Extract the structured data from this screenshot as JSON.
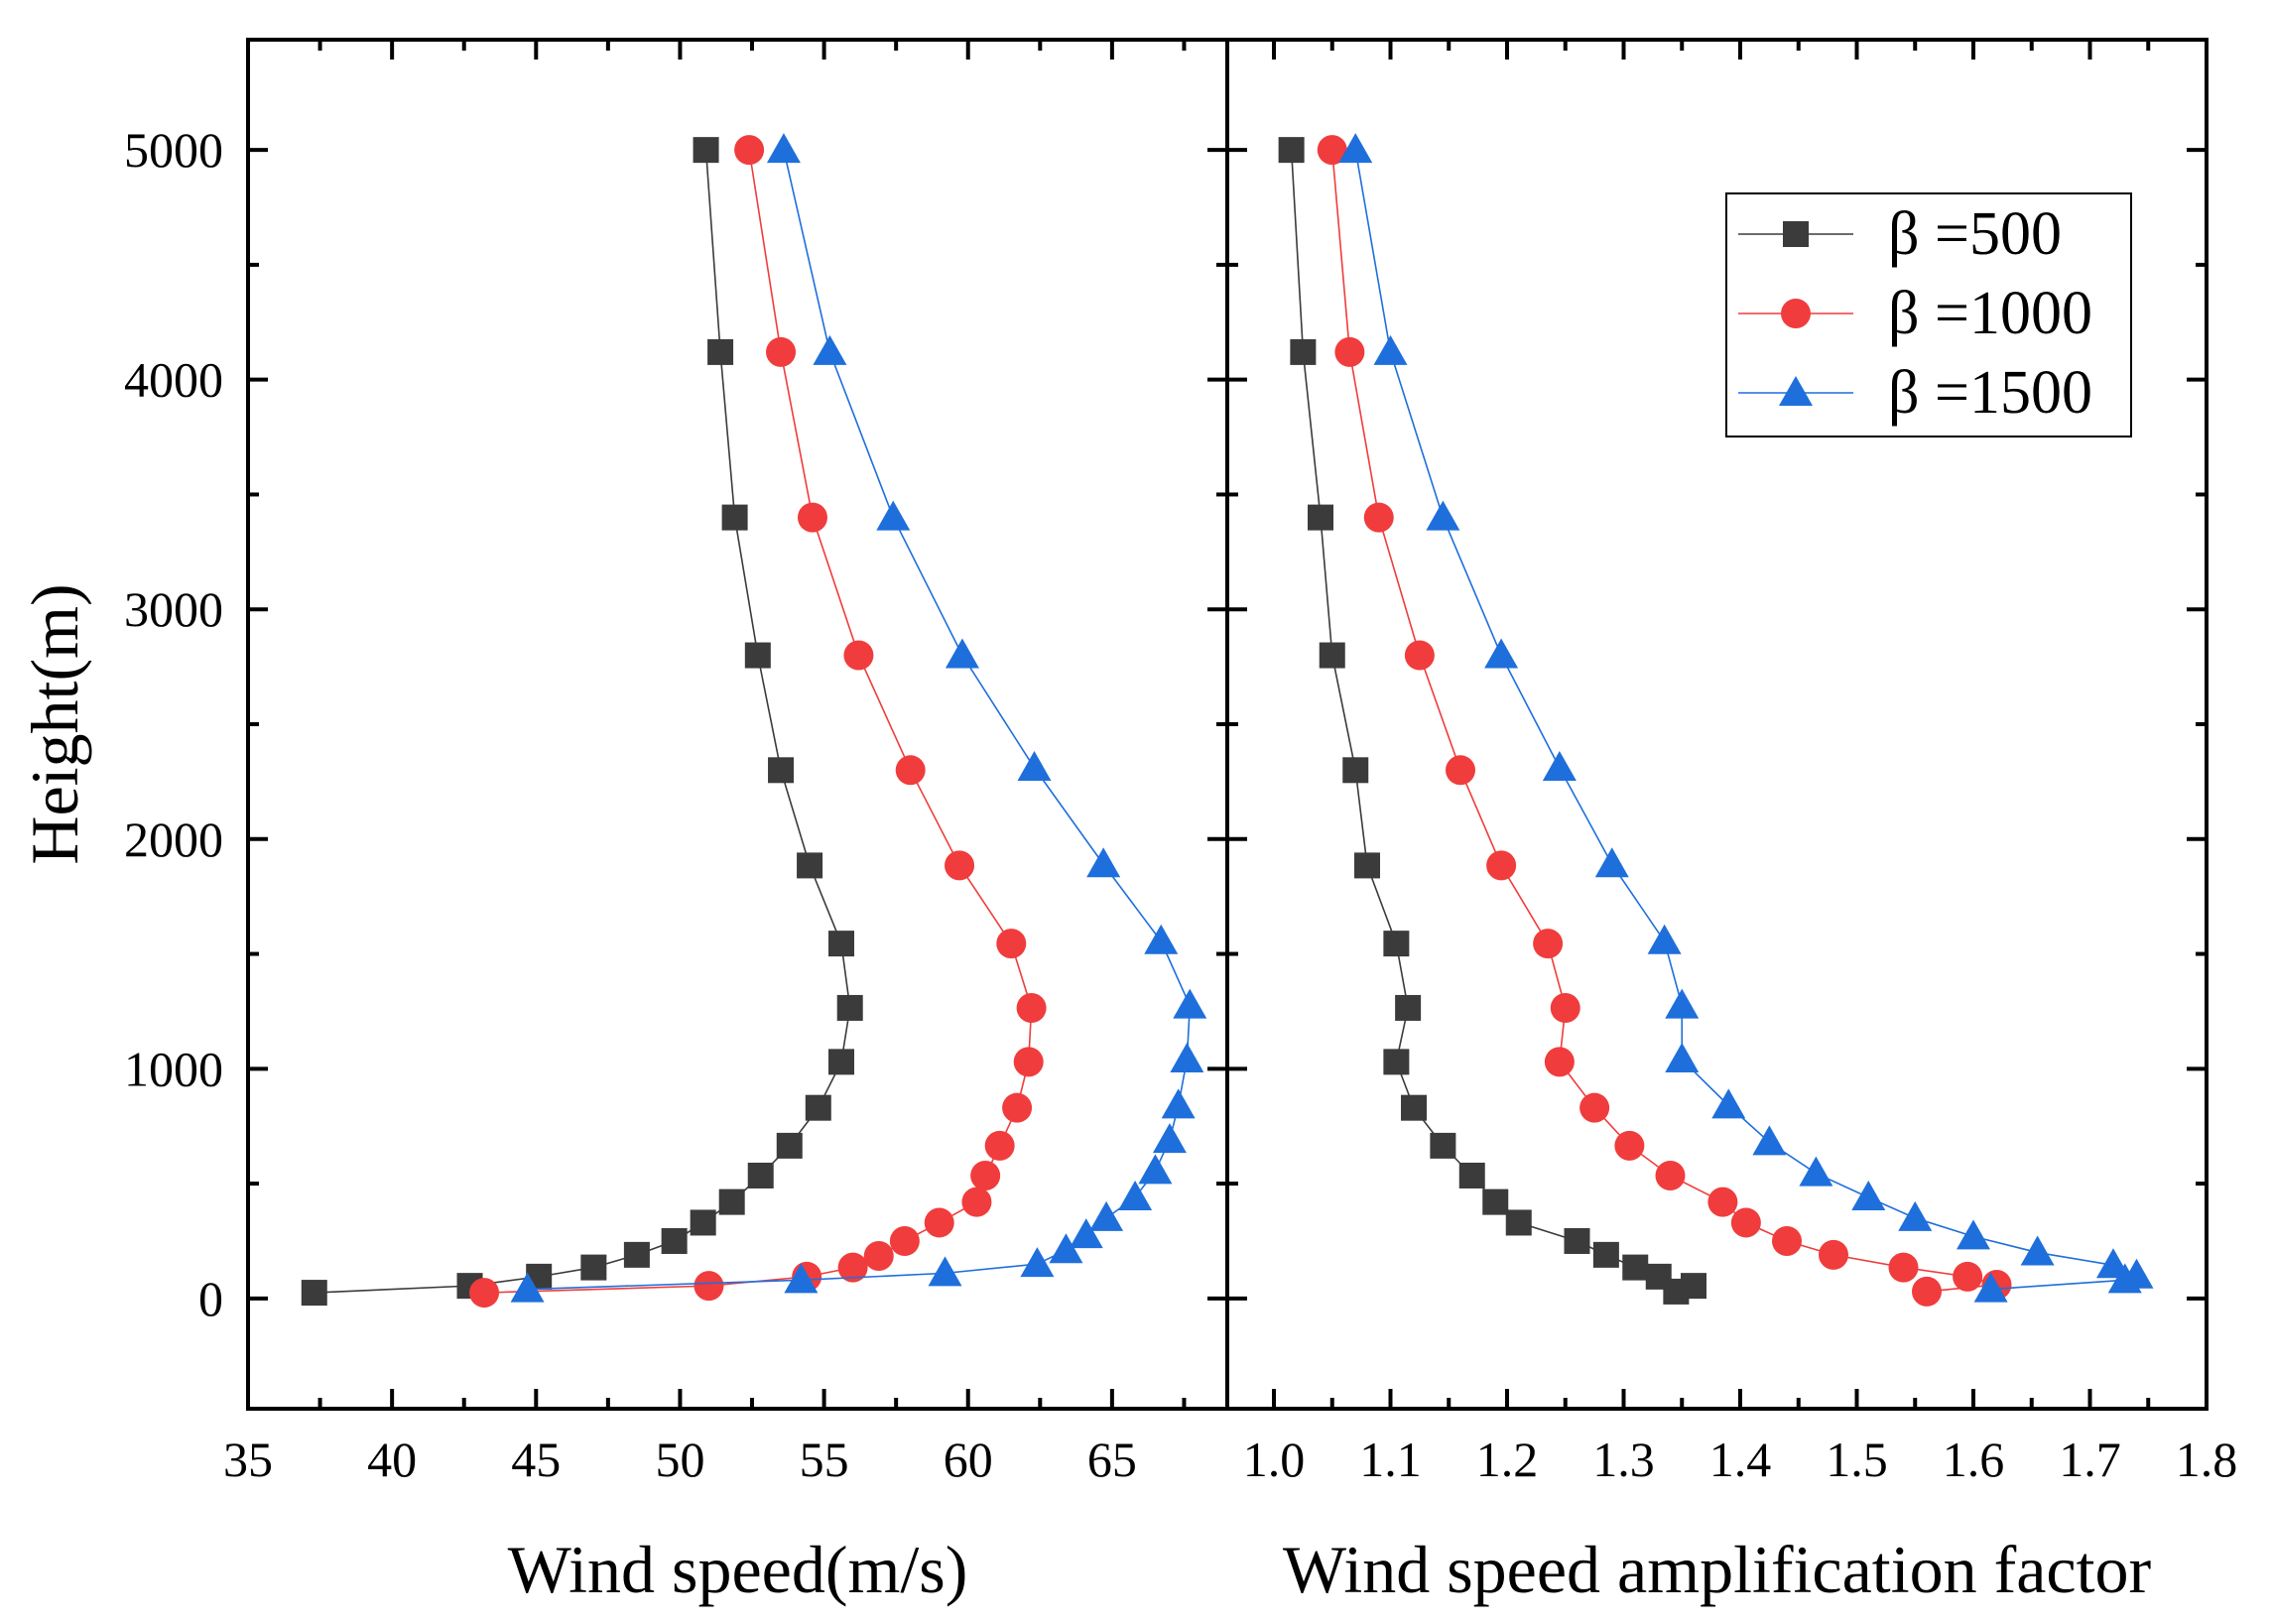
{
  "chart_data": [
    {
      "type": "scatter",
      "xlabel": "Wind speed(m/s)",
      "ylabel": "Height(m)",
      "xlim": [
        35,
        69
      ],
      "ylim": [
        -480,
        5480
      ],
      "xticks": [
        35,
        40,
        45,
        50,
        55,
        60,
        65
      ],
      "xtick_labels": [
        "35",
        "40",
        "45",
        "50",
        "55",
        "60",
        "65"
      ],
      "yticks": [
        0,
        1000,
        2000,
        3000,
        4000,
        5000
      ],
      "ytick_labels": [
        "0",
        "1000",
        "2000",
        "3000",
        "4000",
        "5000"
      ],
      "series": [
        {
          "name": "β =500",
          "marker": "square",
          "color": "#3b3b3b",
          "points": [
            [
              37.3,
              25
            ],
            [
              42.7,
              55
            ],
            [
              45.1,
              95
            ],
            [
              47.0,
              135
            ],
            [
              48.5,
              190
            ],
            [
              49.8,
              250
            ],
            [
              50.8,
              330
            ],
            [
              51.8,
              420
            ],
            [
              52.8,
              535
            ],
            [
              53.8,
              665
            ],
            [
              54.8,
              830
            ],
            [
              55.6,
              1030
            ],
            [
              55.9,
              1265
            ],
            [
              55.6,
              1545
            ],
            [
              54.5,
              1885
            ],
            [
              53.5,
              2300
            ],
            [
              52.7,
              2800
            ],
            [
              51.9,
              3400
            ],
            [
              51.4,
              4120
            ],
            [
              50.9,
              5000
            ]
          ]
        },
        {
          "name": "β =1000",
          "marker": "circle",
          "color": "#f03c3c",
          "points": [
            [
              43.2,
              25
            ],
            [
              51.0,
              55
            ],
            [
              54.4,
              95
            ],
            [
              56.0,
              135
            ],
            [
              56.9,
              185
            ],
            [
              57.8,
              250
            ],
            [
              59.0,
              330
            ],
            [
              60.3,
              420
            ],
            [
              60.6,
              535
            ],
            [
              61.1,
              665
            ],
            [
              61.7,
              830
            ],
            [
              62.1,
              1030
            ],
            [
              62.2,
              1265
            ],
            [
              61.5,
              1545
            ],
            [
              59.7,
              1885
            ],
            [
              58.0,
              2300
            ],
            [
              56.2,
              2800
            ],
            [
              54.6,
              3400
            ],
            [
              53.5,
              4120
            ],
            [
              52.4,
              5000
            ]
          ]
        },
        {
          "name": "β =1500",
          "marker": "triangle",
          "color": "#1e6fdc",
          "points": [
            [
              44.7,
              40
            ],
            [
              54.2,
              80
            ],
            [
              59.2,
              110
            ],
            [
              62.4,
              150
            ],
            [
              63.4,
              210
            ],
            [
              64.1,
              275
            ],
            [
              64.8,
              350
            ],
            [
              65.8,
              440
            ],
            [
              66.5,
              555
            ],
            [
              67.0,
              690
            ],
            [
              67.3,
              840
            ],
            [
              67.6,
              1040
            ],
            [
              67.7,
              1275
            ],
            [
              66.7,
              1555
            ],
            [
              64.7,
              1890
            ],
            [
              62.3,
              2310
            ],
            [
              59.8,
              2800
            ],
            [
              57.4,
              3400
            ],
            [
              55.2,
              4120
            ],
            [
              53.6,
              5000
            ]
          ]
        }
      ]
    },
    {
      "type": "scatter",
      "xlabel": "Wind speed amplification factor",
      "ylabel": "",
      "xlim": [
        0.96,
        1.8
      ],
      "ylim": [
        -480,
        5480
      ],
      "xticks": [
        1.0,
        1.1,
        1.2,
        1.3,
        1.4,
        1.5,
        1.6,
        1.7,
        1.8
      ],
      "xtick_labels": [
        "1.0",
        "1.1",
        "1.2",
        "1.3",
        "1.4",
        "1.5",
        "1.6",
        "1.7",
        "1.8"
      ],
      "yticks": [
        0,
        1000,
        2000,
        3000,
        4000,
        5000
      ],
      "legend_position": "top-right",
      "series": [
        {
          "name": "β =500",
          "marker": "square",
          "color": "#3b3b3b",
          "points": [
            [
              1.345,
              30
            ],
            [
              1.36,
              55
            ],
            [
              1.33,
              95
            ],
            [
              1.31,
              135
            ],
            [
              1.285,
              190
            ],
            [
              1.26,
              250
            ],
            [
              1.21,
              330
            ],
            [
              1.19,
              420
            ],
            [
              1.17,
              535
            ],
            [
              1.145,
              665
            ],
            [
              1.12,
              830
            ],
            [
              1.105,
              1030
            ],
            [
              1.115,
              1265
            ],
            [
              1.105,
              1545
            ],
            [
              1.08,
              1885
            ],
            [
              1.07,
              2300
            ],
            [
              1.05,
              2800
            ],
            [
              1.04,
              3400
            ],
            [
              1.025,
              4120
            ],
            [
              1.015,
              5000
            ]
          ]
        },
        {
          "name": "β =1000",
          "marker": "circle",
          "color": "#f03c3c",
          "points": [
            [
              1.56,
              30
            ],
            [
              1.62,
              60
            ],
            [
              1.595,
              95
            ],
            [
              1.54,
              135
            ],
            [
              1.48,
              190
            ],
            [
              1.44,
              250
            ],
            [
              1.405,
              330
            ],
            [
              1.385,
              420
            ],
            [
              1.34,
              535
            ],
            [
              1.305,
              665
            ],
            [
              1.275,
              830
            ],
            [
              1.245,
              1030
            ],
            [
              1.25,
              1265
            ],
            [
              1.235,
              1545
            ],
            [
              1.195,
              1885
            ],
            [
              1.16,
              2300
            ],
            [
              1.125,
              2800
            ],
            [
              1.09,
              3400
            ],
            [
              1.065,
              4120
            ],
            [
              1.05,
              5000
            ]
          ]
        },
        {
          "name": "β =1500",
          "marker": "triangle",
          "color": "#1e6fdc",
          "points": [
            [
              1.615,
              40
            ],
            [
              1.73,
              80
            ],
            [
              1.74,
              100
            ],
            [
              1.72,
              145
            ],
            [
              1.655,
              200
            ],
            [
              1.6,
              270
            ],
            [
              1.55,
              350
            ],
            [
              1.51,
              440
            ],
            [
              1.465,
              545
            ],
            [
              1.425,
              680
            ],
            [
              1.39,
              840
            ],
            [
              1.35,
              1040
            ],
            [
              1.35,
              1275
            ],
            [
              1.335,
              1555
            ],
            [
              1.29,
              1890
            ],
            [
              1.245,
              2310
            ],
            [
              1.195,
              2800
            ],
            [
              1.145,
              3400
            ],
            [
              1.1,
              4120
            ],
            [
              1.07,
              5000
            ]
          ]
        }
      ]
    }
  ]
}
